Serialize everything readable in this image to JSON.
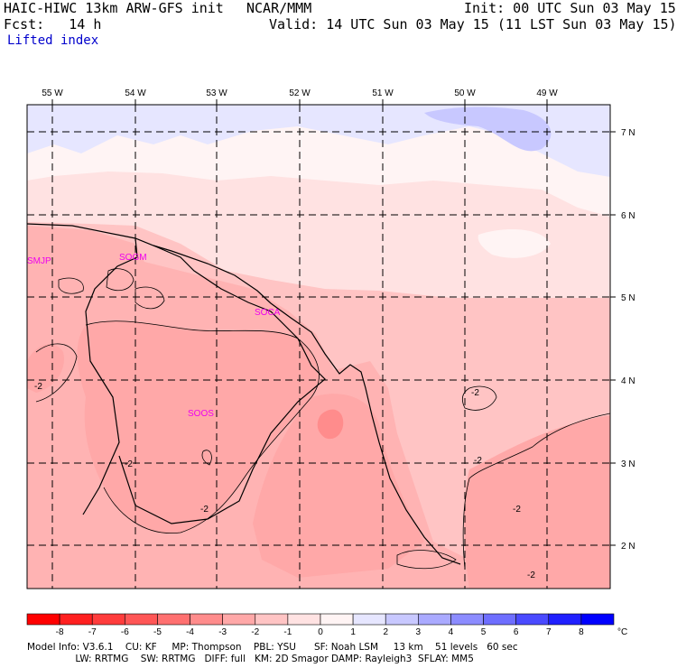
{
  "header": {
    "title": "HAIC-HIWC 13km ARW-GFS init",
    "center": "NCAR/MMM",
    "init": "Init: 00 UTC Sun 03 May 15",
    "forecast": "Fcst:   14 h",
    "valid": "Valid: 14 UTC Sun 03 May 15 (11 LST Sun 03 May 15)",
    "field": "Lifted index"
  },
  "map": {
    "longitudes": [
      "55 W",
      "54 W",
      "53 W",
      "52 W",
      "51 W",
      "50 W",
      "49 W"
    ],
    "latitudes": [
      "7 N",
      "6 N",
      "5 N",
      "4 N",
      "3 N",
      "2 N"
    ],
    "stations": [
      "SMJP",
      "SOGM",
      "SOCA",
      "SOOS"
    ],
    "contour_labels": [
      "-2",
      "-2",
      "-2",
      "-2",
      "-2",
      "-2",
      "-2"
    ]
  },
  "colorbar": {
    "ticks": [
      "-8",
      "-7",
      "-6",
      "-5",
      "-4",
      "-3",
      "-2",
      "-1",
      "0",
      "1",
      "2",
      "3",
      "4",
      "5",
      "6",
      "7",
      "8"
    ],
    "unit": "°C",
    "colors": [
      "#ff0000",
      "#ff2020",
      "#ff3c3c",
      "#ff5656",
      "#ff7070",
      "#ff8c8c",
      "#ffa8a8",
      "#ffc4c4",
      "#ffe2e2",
      "#fff4f4",
      "#e6e6ff",
      "#c8c8ff",
      "#aaaaff",
      "#8c8cff",
      "#6e6eff",
      "#4a4aff",
      "#2020ff",
      "#0000ff"
    ]
  },
  "footer": {
    "line1": "Model Info: V3.6.1    CU: KF     MP: Thompson    PBL: YSU      SF: Noah LSM     13 km    51 levels   60 sec",
    "line2": "                LW: RRTMG    SW: RRTMG   DIFF: full   KM: 2D Smagor DAMP: Rayleigh3  SFLAY: MM5"
  }
}
